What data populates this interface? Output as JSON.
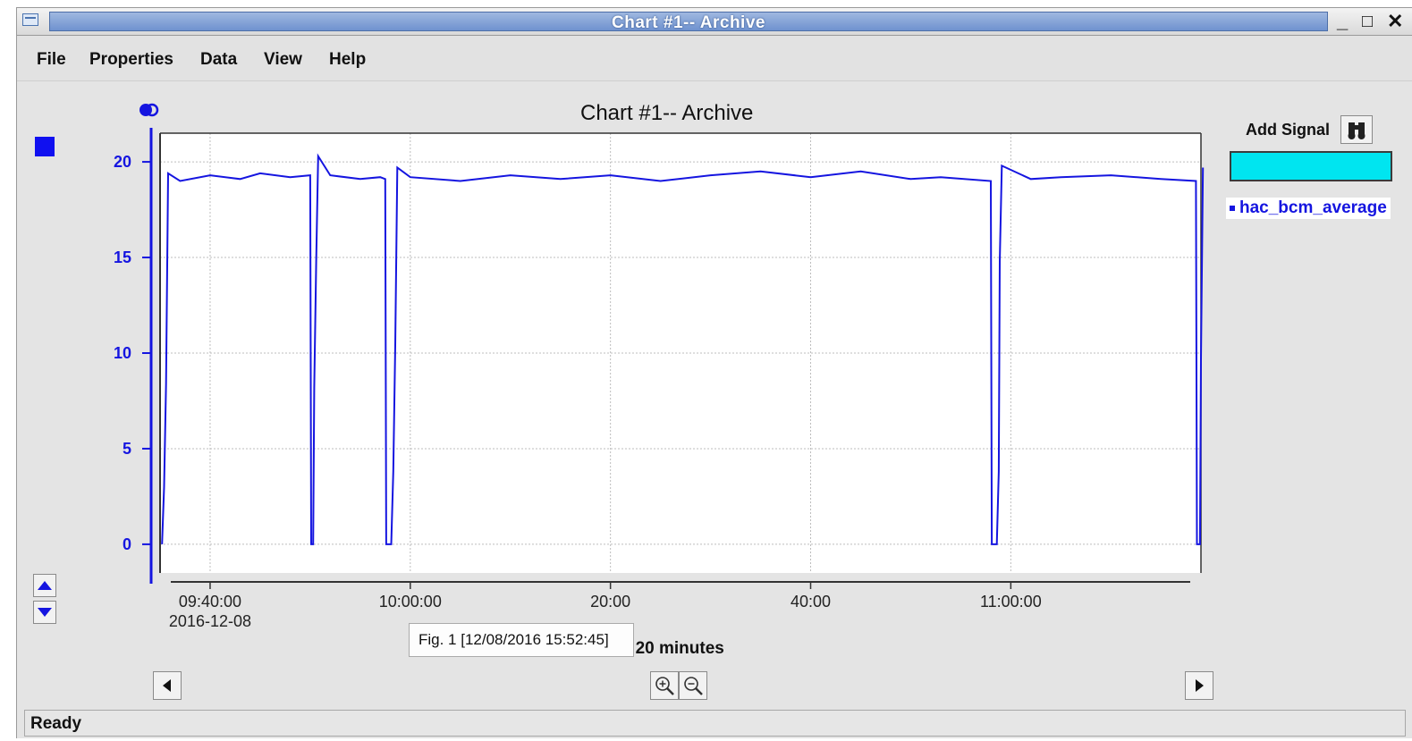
{
  "window": {
    "title": "Chart #1-- Archive"
  },
  "menu": [
    "File",
    "Properties",
    "Data",
    "View",
    "Help"
  ],
  "chart_title": "Chart #1-- Archive",
  "add_signal": {
    "label": "Add Signal"
  },
  "legend": [
    "hac_bcm_average"
  ],
  "tooltip": "Fig. 1 [12/08/2016 15:52:45]",
  "label_step": "Label step: 20 minutes",
  "status": "Ready",
  "colors": {
    "series": "#1515e0",
    "signal_input": "#00e5f0",
    "title_bar": "#7f9fd6"
  },
  "icons": [
    "window-menu-icon",
    "minimize-icon",
    "maximize-icon",
    "close-icon",
    "visibility-toggle-icon",
    "arrow-up-icon",
    "arrow-down-icon",
    "binoculars-icon",
    "scroll-left-icon",
    "zoom-in-icon",
    "zoom-out-icon",
    "scroll-right-icon"
  ],
  "chart_data": {
    "type": "line",
    "title": "Chart #1-- Archive",
    "xlabel": "",
    "ylabel": "",
    "x_tick_labels": [
      "09:40:00\n2016-12-08",
      "10:00:00",
      "20:00",
      "40:00",
      "11:00:00"
    ],
    "x_ticks_minutes": [
      0,
      20,
      40,
      60,
      80
    ],
    "xlim_minutes": [
      -5,
      99
    ],
    "y_ticks": [
      0,
      5,
      10,
      15,
      20
    ],
    "ylim": [
      -1.5,
      21.5
    ],
    "grid": true,
    "legend_position": "right",
    "series": [
      {
        "name": "hac_bcm_average",
        "color": "#1515e0",
        "points": [
          [
            -4.8,
            0
          ],
          [
            -4.6,
            3
          ],
          [
            -4.4,
            8.4
          ],
          [
            -4.2,
            19.4
          ],
          [
            -3,
            19.0
          ],
          [
            0,
            19.3
          ],
          [
            3,
            19.1
          ],
          [
            5,
            19.4
          ],
          [
            8,
            19.2
          ],
          [
            10,
            19.3
          ],
          [
            10.1,
            0
          ],
          [
            10.3,
            0
          ],
          [
            10.4,
            8.2
          ],
          [
            10.6,
            14.8
          ],
          [
            10.8,
            20.3
          ],
          [
            12,
            19.3
          ],
          [
            15,
            19.1
          ],
          [
            17,
            19.2
          ],
          [
            17.5,
            19.1
          ],
          [
            17.6,
            0
          ],
          [
            18.1,
            0
          ],
          [
            18.3,
            3.8
          ],
          [
            18.5,
            10.4
          ],
          [
            18.7,
            19.7
          ],
          [
            20,
            19.2
          ],
          [
            25,
            19.0
          ],
          [
            30,
            19.3
          ],
          [
            35,
            19.1
          ],
          [
            40,
            19.3
          ],
          [
            45,
            19.0
          ],
          [
            50,
            19.3
          ],
          [
            55,
            19.5
          ],
          [
            60,
            19.2
          ],
          [
            65,
            19.5
          ],
          [
            70,
            19.1
          ],
          [
            73,
            19.2
          ],
          [
            78,
            19.0
          ],
          [
            78.1,
            0
          ],
          [
            78.6,
            0
          ],
          [
            78.8,
            3.8
          ],
          [
            78.9,
            14.8
          ],
          [
            79.1,
            19.8
          ],
          [
            82,
            19.1
          ],
          [
            85,
            19.2
          ],
          [
            90,
            19.3
          ],
          [
            95,
            19.1
          ],
          [
            98.5,
            19.0
          ],
          [
            98.6,
            0
          ],
          [
            98.9,
            0
          ],
          [
            99,
            9.7
          ],
          [
            99.2,
            19.7
          ]
        ]
      }
    ]
  }
}
